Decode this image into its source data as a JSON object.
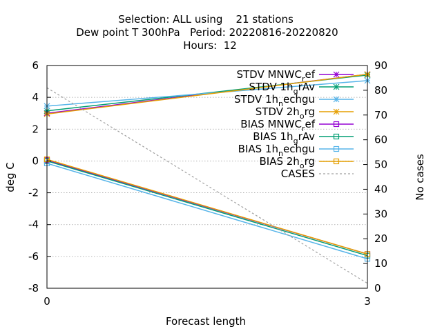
{
  "chart_data": {
    "type": "line",
    "title_lines": [
      "Selection: ALL using    21 stations",
      "Dew point T 300hPa   Period: 20220816-20220820",
      "Hours:  12"
    ],
    "xlabel": "Forecast length",
    "ylabel": "deg C",
    "y2label": "No cases",
    "x": [
      0,
      3
    ],
    "x_ticks": [
      0,
      3
    ],
    "xlim": [
      0,
      3
    ],
    "ylim": [
      -8,
      6
    ],
    "y_ticks": [
      -8,
      -6,
      -4,
      -2,
      0,
      2,
      4,
      6
    ],
    "y2lim": [
      0,
      90
    ],
    "y2_ticks": [
      0,
      10,
      20,
      30,
      40,
      50,
      60,
      70,
      80,
      90
    ],
    "grid": true,
    "legend_position": "top-right",
    "series": [
      {
        "name": "STDV MNWC_ref",
        "legend_main": "STDV MNWC",
        "legend_sub": "r",
        "legend_tail": "ef",
        "axis": "y",
        "color": "#9400d3",
        "marker": "star",
        "values": [
          3.0,
          5.45
        ]
      },
      {
        "name": "STDV 1h_grAv",
        "legend_main": "STDV 1h",
        "legend_sub": "g",
        "legend_tail": "rAv",
        "axis": "y",
        "color": "#009e73",
        "marker": "star",
        "values": [
          3.15,
          5.4
        ]
      },
      {
        "name": "STDV 1h_nechgu",
        "legend_main": "STDV 1h",
        "legend_sub": "n",
        "legend_tail": "echgu",
        "axis": "y",
        "color": "#56b4e9",
        "marker": "star",
        "values": [
          3.45,
          5.05
        ]
      },
      {
        "name": "STDV 2h_org",
        "legend_main": "STDV 2h",
        "legend_sub": "o",
        "legend_tail": "rg",
        "axis": "y",
        "color": "#e69f00",
        "marker": "star",
        "values": [
          2.95,
          5.45
        ]
      },
      {
        "name": "BIAS MNWC_ref",
        "legend_main": "BIAS MNWC",
        "legend_sub": "r",
        "legend_tail": "ef",
        "axis": "y",
        "color": "#9400d3",
        "marker": "square",
        "values": [
          0.05,
          -5.85
        ]
      },
      {
        "name": "BIAS 1h_grAv",
        "legend_main": "BIAS 1h",
        "legend_sub": "g",
        "legend_tail": "rAv",
        "axis": "y",
        "color": "#009e73",
        "marker": "square",
        "values": [
          0.0,
          -5.95
        ]
      },
      {
        "name": "BIAS 1h_nechgu",
        "legend_main": "BIAS 1h",
        "legend_sub": "n",
        "legend_tail": "echgu",
        "axis": "y",
        "color": "#56b4e9",
        "marker": "square",
        "values": [
          -0.15,
          -6.15
        ]
      },
      {
        "name": "BIAS 2h_org",
        "legend_main": "BIAS 2h",
        "legend_sub": "o",
        "legend_tail": "rg",
        "axis": "y",
        "color": "#e69f00",
        "marker": "square",
        "values": [
          0.1,
          -5.85
        ]
      },
      {
        "name": "CASES",
        "legend_main": "CASES",
        "legend_sub": "",
        "legend_tail": "",
        "axis": "y2",
        "color": "#a0a0a0",
        "marker": "none",
        "dashed": true,
        "values": [
          81,
          2
        ]
      }
    ]
  }
}
